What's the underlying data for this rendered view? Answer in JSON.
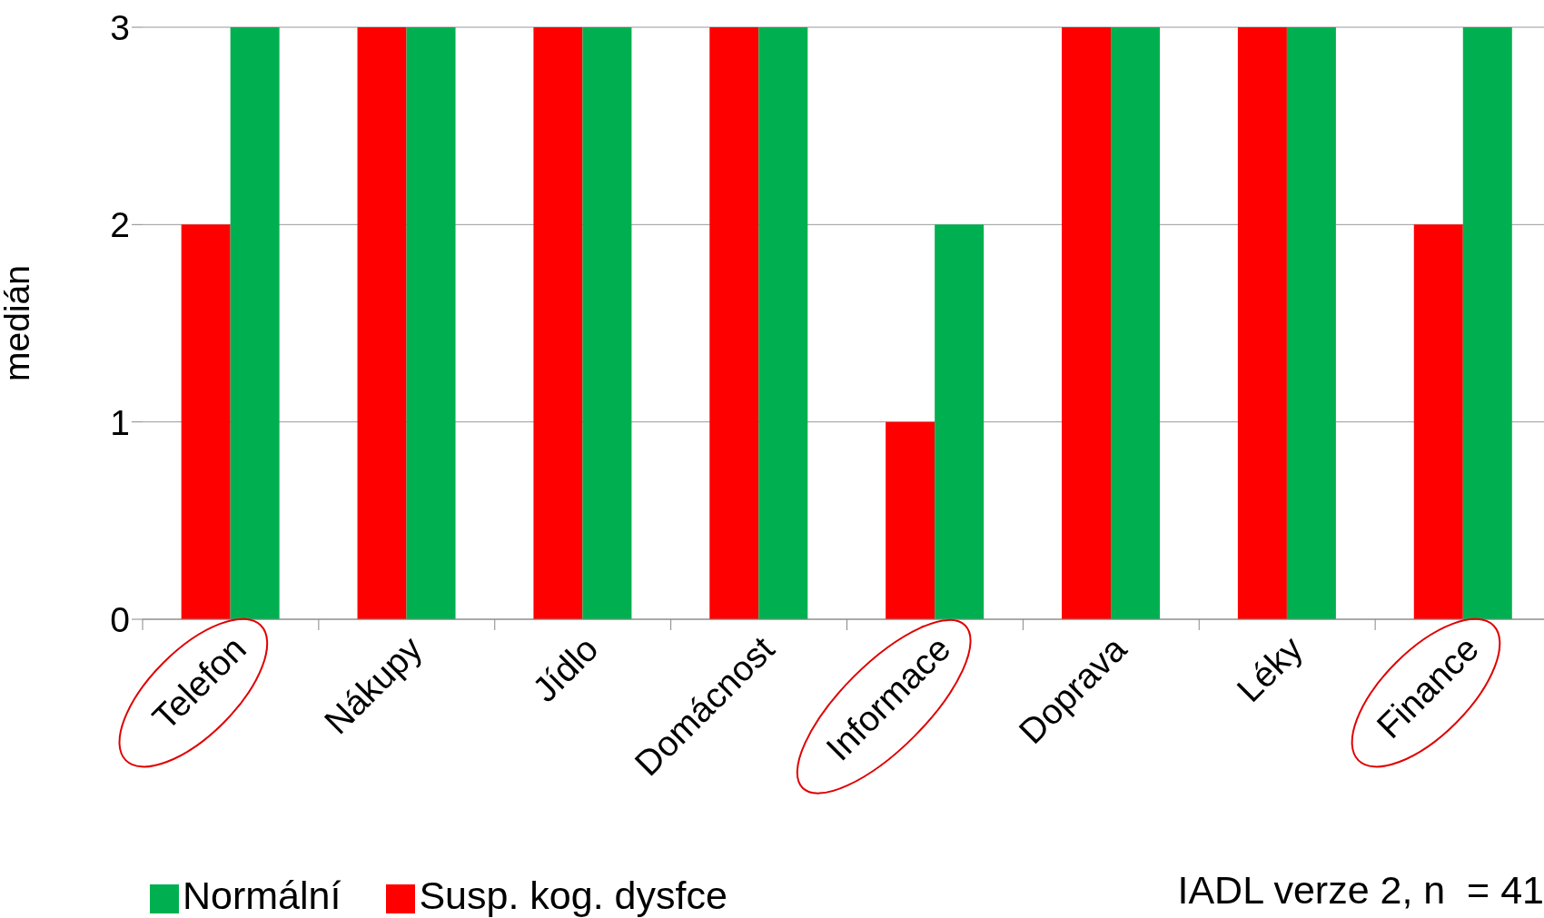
{
  "chart_data": {
    "type": "bar",
    "ylabel": "medián",
    "categories": [
      "Telefon",
      "Nákupy",
      "Jídlo",
      "Domácnost",
      "Informace",
      "Doprava",
      "Léky",
      "Finance"
    ],
    "series": [
      {
        "name": "Susp. kog. dysfce",
        "color": "#ff0000",
        "values": [
          2,
          3,
          3,
          3,
          1,
          3,
          3,
          2
        ]
      },
      {
        "name": "Normální",
        "color": "#00b050",
        "values": [
          3,
          3,
          3,
          3,
          2,
          3,
          3,
          3
        ]
      }
    ],
    "ylim": [
      0,
      3
    ],
    "yticks": [
      0,
      1,
      2,
      3
    ],
    "grid": "y",
    "legend": "bottom left",
    "annotations": [
      "IADL verze 2, n  = 41"
    ]
  }
}
